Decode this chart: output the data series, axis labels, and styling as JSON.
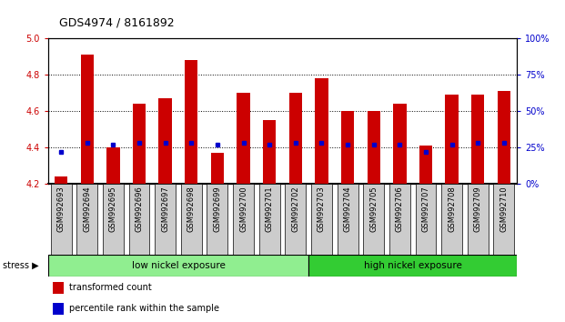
{
  "title": "GDS4974 / 8161892",
  "samples": [
    "GSM992693",
    "GSM992694",
    "GSM992695",
    "GSM992696",
    "GSM992697",
    "GSM992698",
    "GSM992699",
    "GSM992700",
    "GSM992701",
    "GSM992702",
    "GSM992703",
    "GSM992704",
    "GSM992705",
    "GSM992706",
    "GSM992707",
    "GSM992708",
    "GSM992709",
    "GSM992710"
  ],
  "transformed_count": [
    4.24,
    4.91,
    4.4,
    4.64,
    4.67,
    4.88,
    4.37,
    4.7,
    4.55,
    4.7,
    4.78,
    4.6,
    4.6,
    4.64,
    4.41,
    4.69,
    4.69,
    4.71
  ],
  "percentile_rank": [
    22,
    28,
    27,
    28,
    28,
    28,
    27,
    28,
    27,
    28,
    28,
    27,
    27,
    27,
    22,
    27,
    28,
    28
  ],
  "bar_bottom": 4.2,
  "ylim_left": [
    4.2,
    5.0
  ],
  "ylim_right": [
    0,
    100
  ],
  "yticks_left": [
    4.2,
    4.4,
    4.6,
    4.8,
    5.0
  ],
  "yticks_right": [
    0,
    25,
    50,
    75,
    100
  ],
  "ytick_labels_right": [
    "0%",
    "25%",
    "50%",
    "75%",
    "100%"
  ],
  "groups": [
    {
      "label": "low nickel exposure",
      "start": 0,
      "end": 10,
      "color": "#90EE90"
    },
    {
      "label": "high nickel exposure",
      "start": 10,
      "end": 18,
      "color": "#33CC33"
    }
  ],
  "bar_color": "#CC0000",
  "percentile_color": "#0000CC",
  "left_tick_color": "#CC0000",
  "right_tick_color": "#0000CC",
  "title_fontsize": 9,
  "tick_fontsize": 7,
  "label_fontsize": 7,
  "group_fontsize": 7.5
}
